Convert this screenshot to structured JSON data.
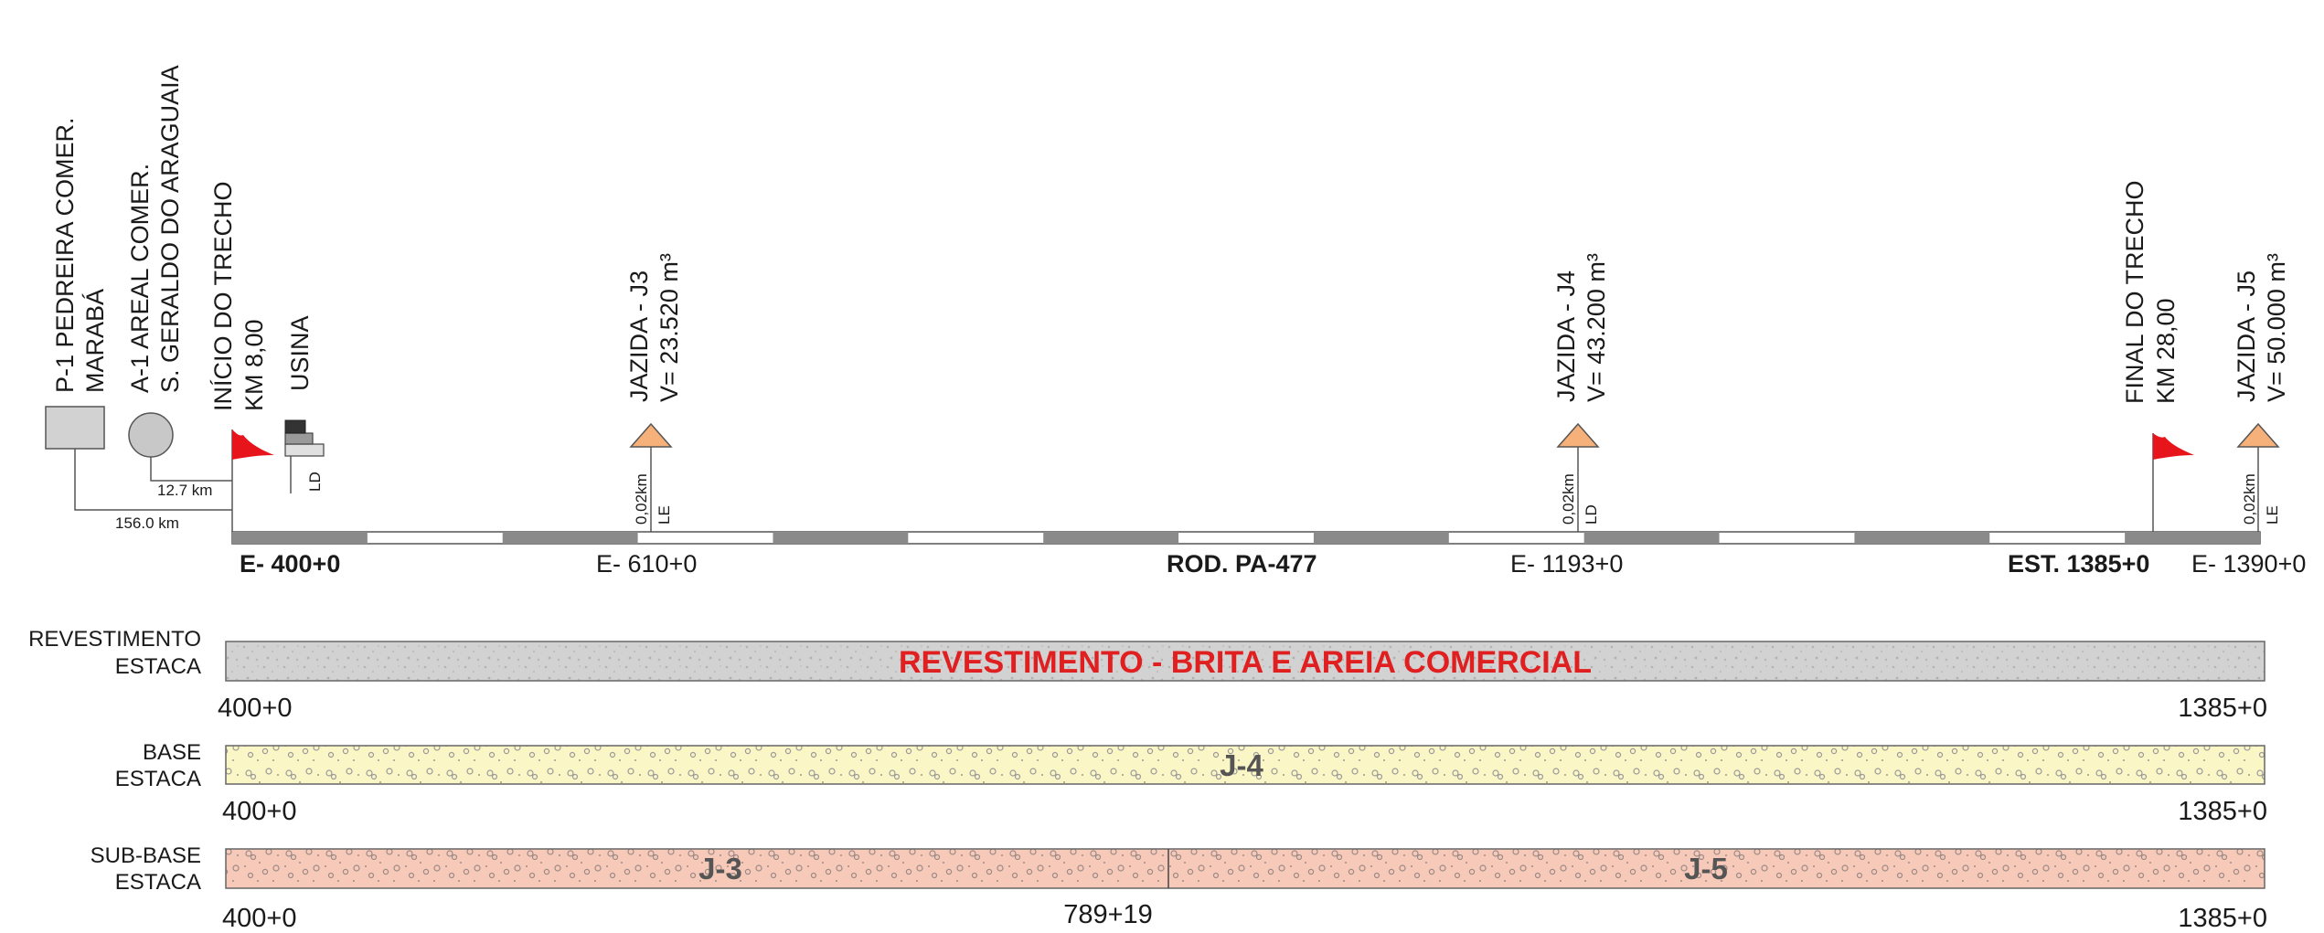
{
  "sources": {
    "pedreira": {
      "line1": "P-1 PEDREIRA COMER.",
      "line2": "MARABÁ"
    },
    "areal": {
      "line1": "A-1 AREAL COMER.",
      "line2": "S. GERALDO DO ARAGUAIA"
    },
    "inicio": {
      "line1": "INÍCIO DO TRECHO",
      "line2": "KM 8,00"
    },
    "usina": {
      "line1": "USINA",
      "side": "LD"
    },
    "dist_areal": "12.7 km",
    "dist_pedreira": "156.0 km"
  },
  "jazidas": [
    {
      "line1": "JAZIDA  -  J3",
      "line2": "V= 23.520 m³",
      "dist": "0,02km",
      "side": "LE"
    },
    {
      "line1": "JAZIDA  -  J4",
      "line2": "V= 43.200 m³",
      "dist": "0,02km",
      "side": "LD"
    },
    {
      "line1": "JAZIDA  -  J5",
      "line2": "V= 50.000 m³",
      "dist": "0,02km",
      "side": "LE"
    }
  ],
  "final": {
    "line1": "FINAL DO TRECHO",
    "line2": "KM 28,00"
  },
  "stations": {
    "start": "E- 400+0",
    "e610": "E- 610+0",
    "road": "ROD. PA-477",
    "e1193": "E- 1193+0",
    "est_final": "EST. 1385+0",
    "e1390": "E- 1390+0"
  },
  "layers": {
    "revestimento": {
      "label1": "REVESTIMENTO",
      "label2": "ESTACA",
      "title": "REVESTIMENTO - BRITA E AREIA COMERCIAL",
      "start": "400+0",
      "end": "1385+0"
    },
    "base": {
      "label1": "BASE",
      "label2": "ESTACA",
      "segment": "J-4",
      "start": "400+0",
      "end": "1385+0"
    },
    "subbase": {
      "label1": "SUB-BASE",
      "label2": "ESTACA",
      "segment1": "J-3",
      "segment2": "J-5",
      "start": "400+0",
      "mid": "789+19",
      "end": "1385+0"
    }
  },
  "colors": {
    "flag": "#e8141c",
    "jazida_fill": "#f6b07a",
    "road_dark": "#8a8a8a",
    "revestimento_fill": "#d2d2d2",
    "base_fill": "#fbf6c6",
    "subbase_fill": "#f7c9b9",
    "revestimento_text": "#e02020"
  }
}
